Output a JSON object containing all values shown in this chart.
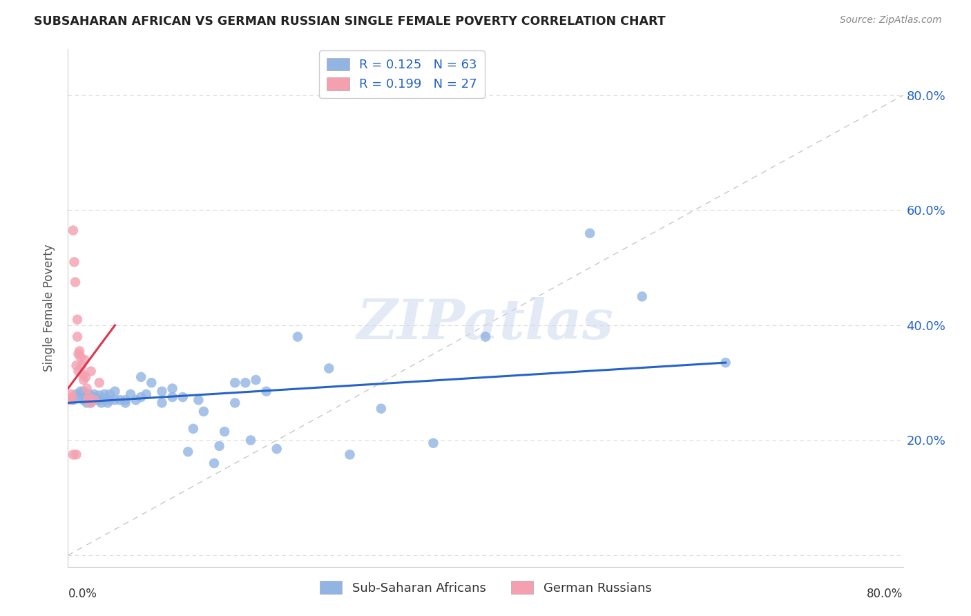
{
  "title": "SUBSAHARAN AFRICAN VS GERMAN RUSSIAN SINGLE FEMALE POVERTY CORRELATION CHART",
  "source": "Source: ZipAtlas.com",
  "ylabel": "Single Female Poverty",
  "xlim": [
    0,
    0.8
  ],
  "ylim": [
    -0.02,
    0.88
  ],
  "blue_R": 0.125,
  "blue_N": 63,
  "pink_R": 0.199,
  "pink_N": 27,
  "blue_color": "#92B4E3",
  "pink_color": "#F4A0B0",
  "blue_line_color": "#2563c7",
  "pink_line_color": "#e0334c",
  "watermark": "ZIPatlas",
  "yticks": [
    0.0,
    0.2,
    0.4,
    0.6,
    0.8
  ],
  "ytick_labels": [
    "",
    "20.0%",
    "40.0%",
    "60.0%",
    "80.0%"
  ],
  "xticks": [
    0.0,
    0.1,
    0.2,
    0.3,
    0.4,
    0.5,
    0.6,
    0.7,
    0.8
  ],
  "blue_x": [
    0.005,
    0.008,
    0.01,
    0.012,
    0.015,
    0.015,
    0.018,
    0.018,
    0.02,
    0.02,
    0.022,
    0.022,
    0.025,
    0.025,
    0.025,
    0.028,
    0.03,
    0.03,
    0.032,
    0.035,
    0.035,
    0.038,
    0.04,
    0.04,
    0.045,
    0.045,
    0.05,
    0.055,
    0.055,
    0.06,
    0.065,
    0.07,
    0.07,
    0.075,
    0.08,
    0.09,
    0.09,
    0.1,
    0.1,
    0.11,
    0.115,
    0.12,
    0.125,
    0.13,
    0.14,
    0.145,
    0.15,
    0.16,
    0.16,
    0.17,
    0.175,
    0.18,
    0.19,
    0.2,
    0.22,
    0.25,
    0.27,
    0.3,
    0.35,
    0.4,
    0.5,
    0.55,
    0.63
  ],
  "blue_y": [
    0.27,
    0.28,
    0.275,
    0.285,
    0.27,
    0.285,
    0.265,
    0.275,
    0.27,
    0.28,
    0.265,
    0.272,
    0.27,
    0.275,
    0.28,
    0.27,
    0.27,
    0.278,
    0.265,
    0.272,
    0.28,
    0.265,
    0.27,
    0.28,
    0.27,
    0.285,
    0.27,
    0.265,
    0.27,
    0.28,
    0.27,
    0.275,
    0.31,
    0.28,
    0.3,
    0.265,
    0.285,
    0.275,
    0.29,
    0.275,
    0.18,
    0.22,
    0.27,
    0.25,
    0.16,
    0.19,
    0.215,
    0.265,
    0.3,
    0.3,
    0.2,
    0.305,
    0.285,
    0.185,
    0.38,
    0.325,
    0.175,
    0.255,
    0.195,
    0.38,
    0.56,
    0.45,
    0.335
  ],
  "pink_x": [
    0.002,
    0.003,
    0.004,
    0.005,
    0.005,
    0.006,
    0.007,
    0.008,
    0.008,
    0.009,
    0.009,
    0.01,
    0.01,
    0.011,
    0.012,
    0.013,
    0.014,
    0.015,
    0.016,
    0.017,
    0.018,
    0.019,
    0.02,
    0.021,
    0.022,
    0.025,
    0.03
  ],
  "pink_y": [
    0.27,
    0.28,
    0.275,
    0.565,
    0.175,
    0.51,
    0.475,
    0.33,
    0.175,
    0.41,
    0.38,
    0.35,
    0.32,
    0.355,
    0.345,
    0.33,
    0.315,
    0.305,
    0.34,
    0.31,
    0.29,
    0.27,
    0.275,
    0.265,
    0.32,
    0.27,
    0.3
  ],
  "blue_line_x": [
    0.0,
    0.63
  ],
  "blue_line_y": [
    0.265,
    0.335
  ],
  "pink_line_x": [
    0.0,
    0.045
  ],
  "pink_line_y": [
    0.29,
    0.4
  ],
  "diag_line_x": [
    0.0,
    0.8
  ],
  "diag_line_y": [
    0.0,
    0.8
  ]
}
